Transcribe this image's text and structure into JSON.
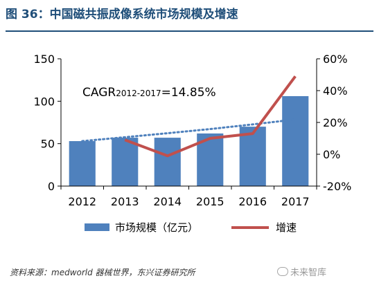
{
  "figure_title": "图 36：中国磁共振成像系统市场规模及增速",
  "chart_data": {
    "type": "bar",
    "categories": [
      "2012",
      "2013",
      "2014",
      "2015",
      "2016",
      "2017"
    ],
    "series": [
      {
        "name": "市场规模（亿元）",
        "type": "bar",
        "axis": "left",
        "color": "#4f81bd",
        "values": [
          53,
          57,
          57,
          62,
          70,
          106
        ]
      },
      {
        "name": "增速",
        "type": "line",
        "axis": "right",
        "color": "#c0504d",
        "values": [
          null,
          9,
          -1,
          10,
          13,
          49
        ]
      }
    ],
    "trendline": {
      "style": "dotted",
      "color": "#4f81bd",
      "values": [
        53,
        57.6,
        62.3,
        67.2,
        72.7,
        78.5
      ]
    },
    "y_left": {
      "min": 0,
      "max": 150,
      "ticks": [
        "0",
        "50",
        "100",
        "150"
      ],
      "tick_values": [
        0,
        50,
        100,
        150
      ]
    },
    "y_right": {
      "min": -20,
      "max": 60,
      "ticks": [
        "-20%",
        "0%",
        "20%",
        "40%",
        "60%"
      ],
      "tick_values": [
        -20,
        0,
        20,
        40,
        60
      ]
    },
    "annotation": {
      "prefix": "CAGR",
      "sub": "2012-2017",
      "suffix": "=14.85%"
    },
    "legend": {
      "position": "bottom"
    }
  },
  "source": "资料来源：medworld 器械世界，东兴证券研究所",
  "watermark": "未来智库"
}
